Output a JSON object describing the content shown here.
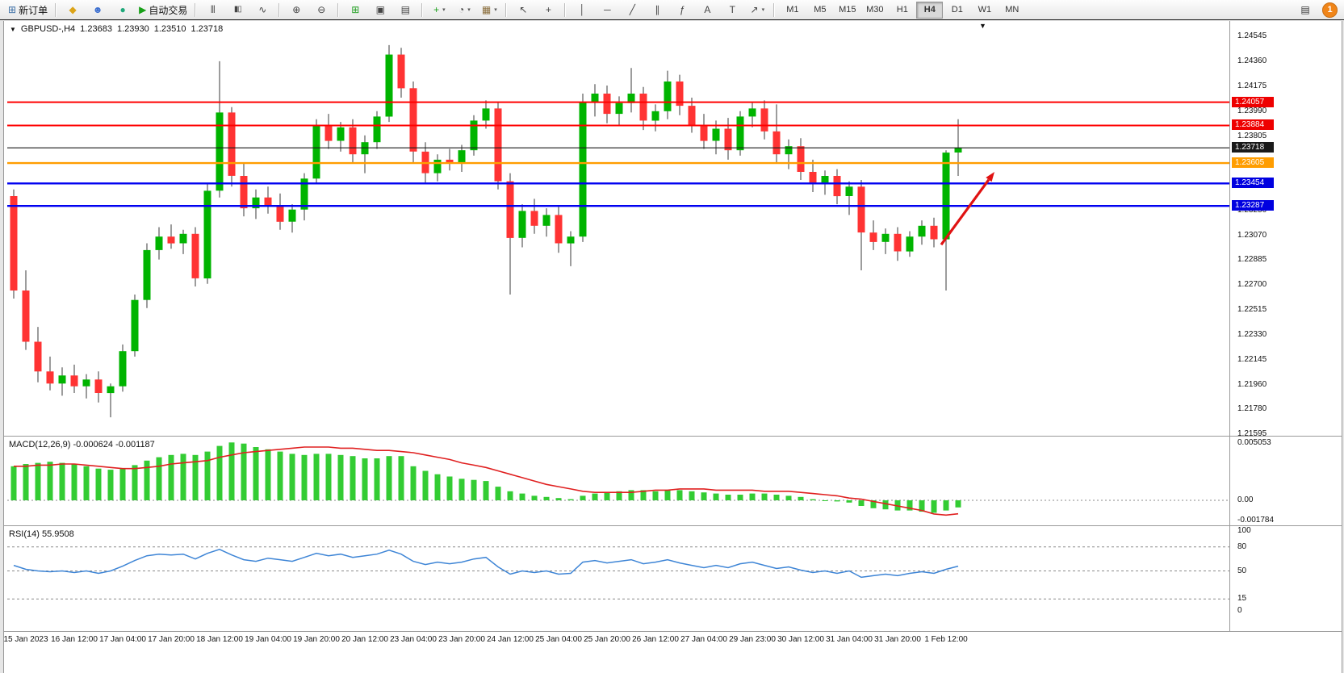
{
  "toolbar": {
    "notification_count": "1",
    "timeframes": [
      "M1",
      "M5",
      "M15",
      "M30",
      "H1",
      "H4",
      "D1",
      "W1",
      "MN"
    ],
    "active_timeframe": "H4",
    "groups": [
      {
        "items": [
          {
            "name": "new-order-button",
            "glyph": "⊞",
            "color": "#3a6ea5",
            "label": "新订单"
          }
        ]
      },
      {
        "items": [
          {
            "name": "chart-window-button",
            "glyph": "◆",
            "color": "#dca418"
          },
          {
            "name": "navigator-button",
            "glyph": "☻",
            "color": "#3c6fd0"
          },
          {
            "name": "community-button",
            "glyph": "●",
            "color": "#1fa87a"
          },
          {
            "name": "autotrade-button",
            "glyph": "▶",
            "color": "#18a018",
            "label": "自动交易"
          }
        ]
      },
      {
        "items": [
          {
            "name": "bars-chart-button",
            "glyph": "|||",
            "small": true
          },
          {
            "name": "candlestick-chart-button",
            "glyph": "▮▯",
            "small": true
          },
          {
            "name": "line-chart-button",
            "glyph": "∿"
          }
        ]
      },
      {
        "items": [
          {
            "name": "zoom-in-button",
            "glyph": "⊕"
          },
          {
            "name": "zoom-out-button",
            "glyph": "⊖"
          }
        ]
      },
      {
        "items": [
          {
            "name": "tile-windows-button",
            "glyph": "⊞",
            "color": "#1f9e1f"
          },
          {
            "name": "cascade-windows-button",
            "glyph": "▣"
          },
          {
            "name": "arrange-windows-button",
            "glyph": "▤"
          }
        ]
      },
      {
        "items": [
          {
            "name": "indicators-button",
            "glyph": "+",
            "color": "#18a018",
            "dropdown": true
          },
          {
            "name": "periods-button",
            "glyph": "◔",
            "dropdown": true
          },
          {
            "name": "templates-button",
            "glyph": "▦",
            "color": "#8a6d3b",
            "dropdown": true
          }
        ]
      },
      {
        "items": [
          {
            "name": "cursor-button",
            "glyph": "↖"
          },
          {
            "name": "crosshair-button",
            "glyph": "+"
          }
        ]
      },
      {
        "items": [
          {
            "name": "vertical-line-button",
            "glyph": "│"
          },
          {
            "name": "horizontal-line-button",
            "glyph": "─"
          },
          {
            "name": "trendline-button",
            "glyph": "╱"
          },
          {
            "name": "channel-button",
            "glyph": "∥"
          },
          {
            "name": "fibonacci-button",
            "glyph": "ƒ"
          },
          {
            "name": "text-button",
            "glyph": "A"
          },
          {
            "name": "label-button",
            "glyph": "T"
          },
          {
            "name": "arrows-button",
            "glyph": "↗",
            "dropdown": true
          }
        ]
      }
    ],
    "right_items": [
      {
        "name": "panels-button",
        "glyph": "▤"
      }
    ]
  },
  "chart": {
    "title": {
      "symbol": "GBPUSD-,H4",
      "open": "1.23683",
      "high": "1.23930",
      "low": "1.23510",
      "close": "1.23718"
    },
    "macd_label": "MACD(12,26,9) -0.000624 -0.001187",
    "rsi_label": "RSI(14) 55.9508"
  },
  "chart_data": {
    "type": "candlestick",
    "symbol": "GBPUSD",
    "period": "H4",
    "ohlc_current": {
      "open": 1.23683,
      "high": 1.2393,
      "low": 1.2351,
      "close": 1.23718
    },
    "ylim": [
      1.21595,
      1.24545
    ],
    "up_color": "#00b400",
    "down_color": "#ff3333",
    "wick_color": "#3a3a3a",
    "price_axis_ticks": [
      1.24545,
      1.2436,
      1.24175,
      1.2399,
      1.23805,
      1.2362,
      1.23435,
      1.2325,
      1.2307,
      1.22885,
      1.227,
      1.22515,
      1.2233,
      1.22145,
      1.2196,
      1.2178,
      1.21595
    ],
    "hlines": [
      {
        "price": 1.24057,
        "color": "#ff0000",
        "width": 2,
        "label_bg": "#ee0000",
        "role": "resistance"
      },
      {
        "price": 1.23884,
        "color": "#ff0000",
        "width": 2,
        "label_bg": "#ee0000",
        "role": "resistance"
      },
      {
        "price": 1.23718,
        "color": "#1a1a1a",
        "width": 1.2,
        "label_bg": "#1a1a1a",
        "role": "current-price"
      },
      {
        "price": 1.23605,
        "color": "#ff9d00",
        "width": 2.4,
        "label_bg": "#ff9d00",
        "role": "level"
      },
      {
        "price": 1.23454,
        "color": "#0000f0",
        "width": 2.4,
        "label_bg": "#0000e0",
        "role": "support"
      },
      {
        "price": 1.23287,
        "color": "#0000f0",
        "width": 2.4,
        "label_bg": "#0000e0",
        "role": "support"
      }
    ],
    "time_labels": [
      "15 Jan 2023",
      "16 Jan 12:00",
      "17 Jan 04:00",
      "17 Jan 20:00",
      "18 Jan 12:00",
      "19 Jan 04:00",
      "19 Jan 20:00",
      "20 Jan 12:00",
      "23 Jan 04:00",
      "23 Jan 20:00",
      "24 Jan 12:00",
      "25 Jan 04:00",
      "25 Jan 20:00",
      "26 Jan 12:00",
      "27 Jan 04:00",
      "29 Jan 23:00",
      "30 Jan 12:00",
      "31 Jan 04:00",
      "31 Jan 20:00",
      "1 Feb 12:00"
    ],
    "time_label_indices": [
      1,
      5,
      9,
      13,
      17,
      21,
      25,
      29,
      33,
      37,
      41,
      45,
      49,
      53,
      57,
      61,
      65,
      69,
      73,
      77
    ],
    "candles": [
      [
        1.2336,
        1.2341,
        1.226,
        1.2266
      ],
      [
        1.2266,
        1.2281,
        1.2222,
        1.2228
      ],
      [
        1.2228,
        1.2239,
        1.2198,
        1.2206
      ],
      [
        1.2206,
        1.2217,
        1.2192,
        1.2197
      ],
      [
        1.2197,
        1.2209,
        1.2188,
        1.2203
      ],
      [
        1.2203,
        1.2211,
        1.219,
        1.2195
      ],
      [
        1.2195,
        1.2204,
        1.2186,
        1.22
      ],
      [
        1.22,
        1.2206,
        1.2183,
        1.219
      ],
      [
        1.219,
        1.2197,
        1.2172,
        1.2195
      ],
      [
        1.2195,
        1.2226,
        1.2191,
        1.2221
      ],
      [
        1.2221,
        1.2263,
        1.2217,
        1.2259
      ],
      [
        1.2259,
        1.2301,
        1.2253,
        1.2296
      ],
      [
        1.2296,
        1.2313,
        1.2289,
        1.2306
      ],
      [
        1.2306,
        1.2315,
        1.2297,
        1.2301
      ],
      [
        1.2301,
        1.2311,
        1.2293,
        1.2308
      ],
      [
        1.2308,
        1.2313,
        1.2269,
        1.2275
      ],
      [
        1.2275,
        1.2345,
        1.2271,
        1.234
      ],
      [
        1.234,
        1.2436,
        1.2335,
        1.2398
      ],
      [
        1.2398,
        1.2402,
        1.2343,
        1.2351
      ],
      [
        1.2351,
        1.2361,
        1.2321,
        1.2327
      ],
      [
        1.2327,
        1.2341,
        1.2319,
        1.2335
      ],
      [
        1.2335,
        1.2343,
        1.2323,
        1.2329
      ],
      [
        1.2329,
        1.2338,
        1.2311,
        1.2317
      ],
      [
        1.2317,
        1.233,
        1.2309,
        1.2326
      ],
      [
        1.2326,
        1.2353,
        1.2318,
        1.2349
      ],
      [
        1.2349,
        1.2393,
        1.2345,
        1.2389
      ],
      [
        1.2389,
        1.2397,
        1.2371,
        1.2377
      ],
      [
        1.2377,
        1.2391,
        1.2369,
        1.2387
      ],
      [
        1.2387,
        1.2393,
        1.2361,
        1.2367
      ],
      [
        1.2367,
        1.2381,
        1.2353,
        1.2376
      ],
      [
        1.2376,
        1.2399,
        1.2371,
        1.2395
      ],
      [
        1.2395,
        1.2448,
        1.2391,
        1.2441
      ],
      [
        1.2441,
        1.2446,
        1.2409,
        1.2416
      ],
      [
        1.2416,
        1.2421,
        1.2361,
        1.2369
      ],
      [
        1.2369,
        1.2376,
        1.2346,
        1.2353
      ],
      [
        1.2353,
        1.2367,
        1.2347,
        1.2363
      ],
      [
        1.2363,
        1.2371,
        1.2355,
        1.236
      ],
      [
        1.236,
        1.2374,
        1.2354,
        1.237
      ],
      [
        1.237,
        1.2396,
        1.2366,
        1.2392
      ],
      [
        1.2392,
        1.2407,
        1.2386,
        1.2401
      ],
      [
        1.2401,
        1.2406,
        1.2341,
        1.2347
      ],
      [
        1.2347,
        1.2353,
        1.2263,
        1.2305
      ],
      [
        1.2305,
        1.233,
        1.2298,
        1.2325
      ],
      [
        1.2325,
        1.2334,
        1.2308,
        1.2314
      ],
      [
        1.2314,
        1.2327,
        1.2306,
        1.2322
      ],
      [
        1.2322,
        1.2328,
        1.2294,
        1.2301
      ],
      [
        1.2301,
        1.231,
        1.2284,
        1.2306
      ],
      [
        1.2306,
        1.2412,
        1.2302,
        1.2406
      ],
      [
        1.2406,
        1.2419,
        1.2395,
        1.2412
      ],
      [
        1.2412,
        1.2418,
        1.239,
        1.2397
      ],
      [
        1.2397,
        1.241,
        1.2389,
        1.2405
      ],
      [
        1.2405,
        1.2431,
        1.2398,
        1.2412
      ],
      [
        1.2412,
        1.2417,
        1.2385,
        1.2392
      ],
      [
        1.2392,
        1.2404,
        1.2384,
        1.2399
      ],
      [
        1.2399,
        1.2429,
        1.2393,
        1.2421
      ],
      [
        1.2421,
        1.2426,
        1.2396,
        1.2403
      ],
      [
        1.2403,
        1.2409,
        1.2383,
        1.2389
      ],
      [
        1.2389,
        1.2397,
        1.2371,
        1.2377
      ],
      [
        1.2377,
        1.2392,
        1.2367,
        1.2386
      ],
      [
        1.2386,
        1.2394,
        1.2363,
        1.237
      ],
      [
        1.237,
        1.2399,
        1.2366,
        1.2395
      ],
      [
        1.2395,
        1.2406,
        1.2387,
        1.2401
      ],
      [
        1.2401,
        1.2407,
        1.2378,
        1.2384
      ],
      [
        1.2384,
        1.2404,
        1.236,
        1.2367
      ],
      [
        1.2367,
        1.2378,
        1.2356,
        1.2373
      ],
      [
        1.2373,
        1.2379,
        1.2348,
        1.2354
      ],
      [
        1.2354,
        1.2363,
        1.2339,
        1.2346
      ],
      [
        1.2346,
        1.2355,
        1.2337,
        1.2351
      ],
      [
        1.2351,
        1.2356,
        1.233,
        1.2336
      ],
      [
        1.2336,
        1.2347,
        1.2322,
        1.2343
      ],
      [
        1.2343,
        1.2348,
        1.2281,
        1.2309
      ],
      [
        1.2309,
        1.2318,
        1.2296,
        1.2302
      ],
      [
        1.2302,
        1.2312,
        1.2293,
        1.2308
      ],
      [
        1.2308,
        1.2313,
        1.2288,
        1.2295
      ],
      [
        1.2295,
        1.231,
        1.2291,
        1.2306
      ],
      [
        1.2306,
        1.2318,
        1.23,
        1.2314
      ],
      [
        1.2314,
        1.232,
        1.2298,
        1.2304
      ],
      [
        1.2304,
        1.237,
        1.2266,
        1.23683
      ],
      [
        1.23683,
        1.2393,
        1.2351,
        1.23718
      ]
    ],
    "indicators": [
      {
        "name": "MACD",
        "params": [
          12,
          26,
          9
        ],
        "current": {
          "macd": -0.000624,
          "signal": -0.001187
        },
        "axis_ticks": [
          "0.005053",
          "0.00",
          "-0.001784"
        ],
        "axis_values": [
          0.005053,
          0,
          -0.001784
        ],
        "hist_color": "#33cc33",
        "signal_color": "#e02020",
        "histogram": [
          0.003,
          0.0032,
          0.0033,
          0.0034,
          0.0033,
          0.0032,
          0.003,
          0.0028,
          0.0027,
          0.0028,
          0.0031,
          0.0035,
          0.0038,
          0.004,
          0.0041,
          0.004,
          0.0043,
          0.0048,
          0.0051,
          0.005,
          0.0047,
          0.0045,
          0.0043,
          0.0041,
          0.004,
          0.0041,
          0.0041,
          0.004,
          0.0039,
          0.0037,
          0.0037,
          0.0039,
          0.0039,
          0.003,
          0.0026,
          0.0023,
          0.0021,
          0.0019,
          0.0018,
          0.0017,
          0.0012,
          0.0008,
          0.0006,
          0.0004,
          0.0003,
          0.0002,
          0.0001,
          0.0004,
          0.0006,
          0.0007,
          0.0008,
          0.0009,
          0.0009,
          0.0008,
          0.0009,
          0.0009,
          0.0008,
          0.0007,
          0.0006,
          0.0005,
          0.0005,
          0.0006,
          0.0006,
          0.0005,
          0.0004,
          0.0003,
          0.0001,
          0.0,
          -0.0001,
          -0.0002,
          -0.0005,
          -0.0007,
          -0.0008,
          -0.0009,
          -0.0009,
          -0.001,
          -0.0011,
          -0.0009,
          -0.000624
        ],
        "signal": [
          0.003,
          0.003,
          0.0031,
          0.0031,
          0.0032,
          0.0032,
          0.0031,
          0.003,
          0.0029,
          0.0028,
          0.0028,
          0.0029,
          0.003,
          0.0032,
          0.0033,
          0.0034,
          0.0035,
          0.0038,
          0.004,
          0.0042,
          0.0043,
          0.0044,
          0.0045,
          0.0046,
          0.0047,
          0.0047,
          0.0047,
          0.0046,
          0.0046,
          0.0045,
          0.0044,
          0.0044,
          0.0043,
          0.0042,
          0.004,
          0.0038,
          0.0036,
          0.0033,
          0.0031,
          0.0029,
          0.0026,
          0.0023,
          0.002,
          0.0017,
          0.0014,
          0.0012,
          0.001,
          0.0008,
          0.0007,
          0.0007,
          0.0007,
          0.0007,
          0.0008,
          0.0009,
          0.0009,
          0.001,
          0.001,
          0.001,
          0.0009,
          0.0009,
          0.0009,
          0.0009,
          0.0008,
          0.0008,
          0.0008,
          0.0007,
          0.0006,
          0.0005,
          0.0004,
          0.0002,
          0.0001,
          -0.0001,
          -0.0003,
          -0.0005,
          -0.0007,
          -0.0009,
          -0.0012,
          -0.0013,
          -0.001187
        ]
      },
      {
        "name": "RSI",
        "params": [
          14
        ],
        "current": 55.9508,
        "axis_ticks": [
          "100",
          "80",
          "50",
          "15",
          "0"
        ],
        "axis_values": [
          100,
          80,
          50,
          15,
          0
        ],
        "levels": [
          80,
          50,
          15
        ],
        "range": [
          0,
          100
        ],
        "color": "#3e85d6",
        "values": [
          57,
          52,
          50,
          49,
          50,
          48,
          50,
          47,
          50,
          56,
          63,
          69,
          71,
          70,
          71,
          65,
          72,
          77,
          70,
          64,
          62,
          66,
          64,
          62,
          67,
          72,
          69,
          71,
          67,
          69,
          71,
          76,
          71,
          62,
          58,
          61,
          59,
          61,
          65,
          67,
          55,
          46,
          50,
          48,
          50,
          46,
          47,
          61,
          63,
          60,
          62,
          64,
          59,
          61,
          64,
          60,
          57,
          54,
          57,
          54,
          59,
          61,
          57,
          53,
          55,
          51,
          48,
          50,
          47,
          50,
          42,
          44,
          46,
          44,
          47,
          49,
          47,
          52,
          55.95
        ]
      }
    ],
    "annotations": [
      {
        "type": "arrow",
        "color": "#e01212",
        "width": 3.2,
        "from": {
          "index": 76.6,
          "price": 1.23
        },
        "to": {
          "index": 81,
          "price": 1.2354
        }
      }
    ]
  }
}
